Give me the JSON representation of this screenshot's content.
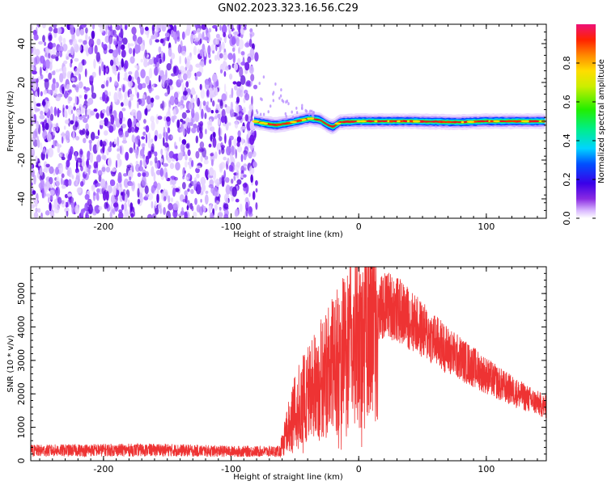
{
  "figure": {
    "title": "GN02.2023.323.16.56.C29"
  },
  "chart_data": [
    {
      "type": "heatmap",
      "xlabel": "Height of straight line (km)",
      "ylabel": "Frequency (Hz)",
      "xlim": [
        -257,
        147
      ],
      "ylim": [
        -50,
        50
      ],
      "x_ticks": [
        -200,
        -100,
        0,
        100
      ],
      "y_ticks": [
        -40,
        -20,
        0,
        20,
        40
      ],
      "noise_region_x": [
        -257,
        -80
      ],
      "signal_band_x": [
        -82,
        147
      ],
      "signal_center_freq": [
        [
          -82,
          0
        ],
        [
          -75,
          -1
        ],
        [
          -65,
          -2
        ],
        [
          -55,
          -1
        ],
        [
          -45,
          0.5
        ],
        [
          -38,
          1.5
        ],
        [
          -30,
          0.5
        ],
        [
          -24,
          -2
        ],
        [
          -20,
          -3
        ],
        [
          -15,
          -0.5
        ],
        [
          0,
          0
        ],
        [
          40,
          0
        ],
        [
          80,
          -0.5
        ],
        [
          100,
          0
        ],
        [
          147,
          0
        ]
      ],
      "colorbar": {
        "label": "Normalized spectral amplitude",
        "range": [
          0.0,
          1.0
        ],
        "ticks": [
          0.0,
          0.2,
          0.4,
          0.6,
          0.8
        ]
      },
      "grid": false
    },
    {
      "type": "line",
      "xlabel": "Height of straight line (km)",
      "ylabel": "SNR (10 * v/v)",
      "xlim": [
        -257,
        147
      ],
      "ylim": [
        0,
        5800
      ],
      "x_ticks": [
        -200,
        -100,
        0,
        100
      ],
      "y_ticks": [
        0,
        1000,
        2000,
        3000,
        4000,
        5000
      ],
      "color": "#ee3333",
      "envelope": [
        {
          "x": -257,
          "y": 300
        },
        {
          "x": -200,
          "y": 320
        },
        {
          "x": -150,
          "y": 320
        },
        {
          "x": -100,
          "y": 280
        },
        {
          "x": -62,
          "y": 280
        },
        {
          "x": -58,
          "y": 700
        },
        {
          "x": -50,
          "y": 1500
        },
        {
          "x": -40,
          "y": 2000
        },
        {
          "x": -30,
          "y": 2400
        },
        {
          "x": -20,
          "y": 2800
        },
        {
          "x": -10,
          "y": 3300
        },
        {
          "x": 0,
          "y": 3700
        },
        {
          "x": 10,
          "y": 4200
        },
        {
          "x": 22,
          "y": 4700
        },
        {
          "x": 35,
          "y": 4400
        },
        {
          "x": 50,
          "y": 3900
        },
        {
          "x": 70,
          "y": 3300
        },
        {
          "x": 90,
          "y": 2800
        },
        {
          "x": 110,
          "y": 2300
        },
        {
          "x": 130,
          "y": 1900
        },
        {
          "x": 147,
          "y": 1600
        }
      ],
      "grid": false
    }
  ]
}
